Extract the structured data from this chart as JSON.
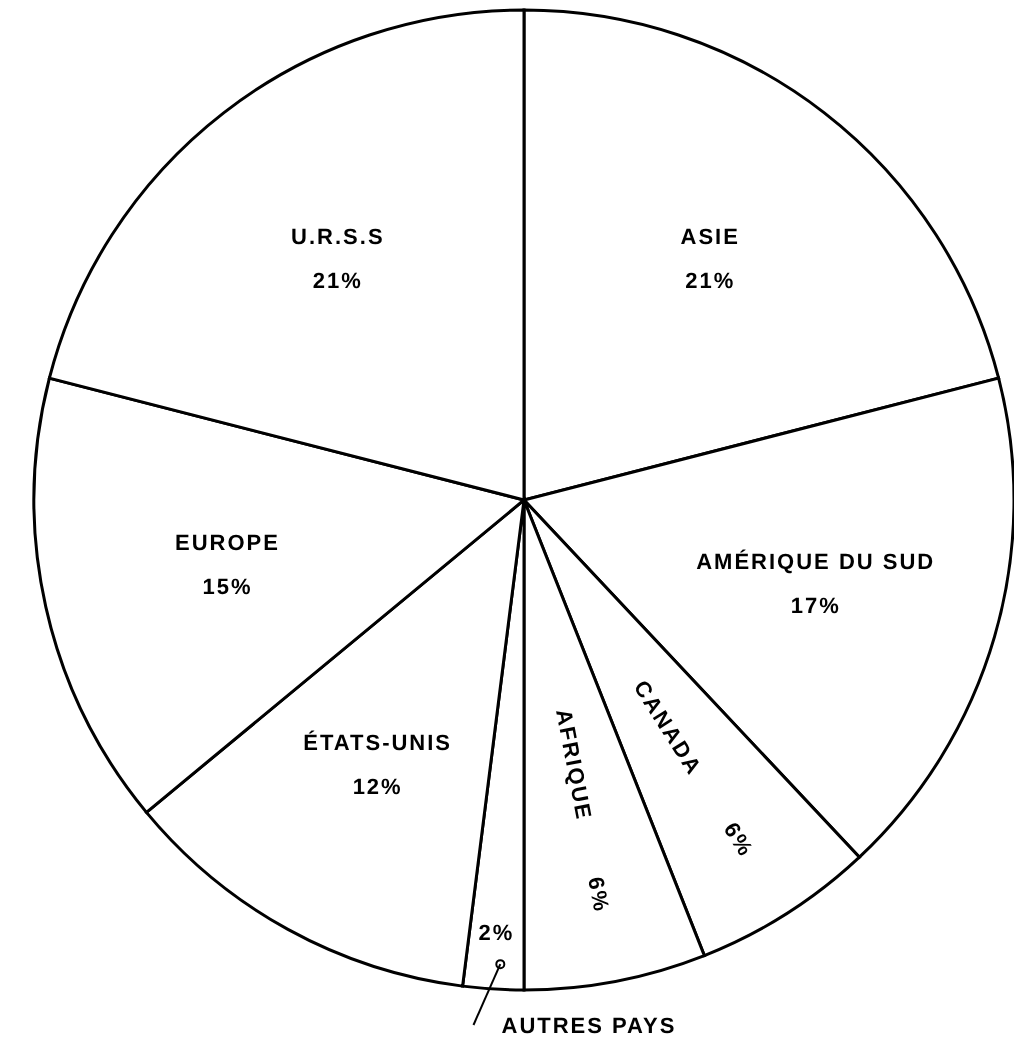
{
  "chart_data": {
    "type": "pie",
    "categories": [
      "ASIE",
      "AMÉRIQUE DU SUD",
      "CANADA",
      "AFRIQUE",
      "AUTRES PAYS",
      "ÉTATS-UNIS",
      "EUROPE",
      "U.R.S.S"
    ],
    "values": [
      21,
      17,
      6,
      6,
      2,
      12,
      15,
      21
    ],
    "value_labels": [
      "21%",
      "17%",
      "6%",
      "6%",
      "2%",
      "12%",
      "15%",
      "21%"
    ],
    "colors": [
      "#ffffff",
      "#ffffff",
      "#ffffff",
      "#ffffff",
      "#ffffff",
      "#ffffff",
      "#ffffff",
      "#ffffff"
    ]
  }
}
